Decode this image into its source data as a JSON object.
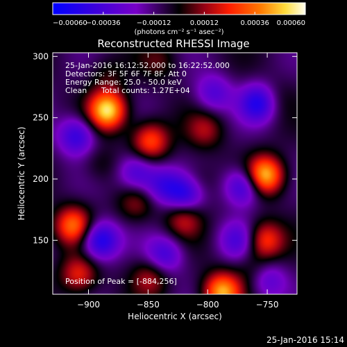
{
  "chart_data": {
    "type": "heatmap",
    "title": "Reconstructed RHESSI Image",
    "xlabel": "Heliocentric X (arcsec)",
    "ylabel": "Heliocentric Y (arcsec)",
    "xlim": [
      -930,
      -725
    ],
    "ylim": [
      106,
      303
    ],
    "x_ticks": [
      -900,
      -850,
      -800,
      -750
    ],
    "y_ticks": [
      150,
      200,
      250,
      300
    ],
    "x_tick_labels": [
      "-900",
      "-850",
      "-800",
      "-750"
    ],
    "y_tick_labels": [
      "150",
      "200",
      "250",
      "300"
    ],
    "colorbar": {
      "range": [
        -0.0006,
        0.0006
      ],
      "tick_values": [
        -0.0006,
        -0.00036,
        -0.00012,
        0.00012,
        0.00036,
        0.0006
      ],
      "tick_labels": [
        "-0.00060",
        "-0.00036",
        "-0.00012",
        "0.00012",
        "0.00036",
        "0.00060"
      ],
      "units_label": "(photons cm⁻² s⁻¹ asec⁻²)"
    },
    "annotations": {
      "time_range": "25-Jan-2016 16:12:52.000 to 16:22:52.000",
      "detectors": "Detectors: 3F 5F 6F 7F 8F, Att 0",
      "energy_range": "Energy Range: 25.0 - 50.0 keV",
      "clean_label": "Clean",
      "total_counts": "Total counts: 1.27E+04",
      "peak": "Position of Peak = [-884,256]"
    },
    "peaks": [
      {
        "x": -884,
        "y": 256,
        "value": 0.0006
      },
      {
        "x": -752,
        "y": 203,
        "value": 0.00057
      },
      {
        "x": -788,
        "y": 108,
        "value": 0.00052
      },
      {
        "x": -913,
        "y": 162,
        "value": 0.00042
      },
      {
        "x": -848,
        "y": 231,
        "value": 0.00038
      },
      {
        "x": -752,
        "y": 150,
        "value": 0.00035
      },
      {
        "x": -820,
        "y": 168,
        "value": 0.00025
      },
      {
        "x": -908,
        "y": 122,
        "value": 0.0003
      },
      {
        "x": -802,
        "y": 240,
        "value": 0.0002
      },
      {
        "x": -848,
        "y": 120,
        "value": 0.00022
      },
      {
        "x": -860,
        "y": 180,
        "value": 0.00018
      },
      {
        "x": -810,
        "y": 196,
        "value": 0.00016
      },
      {
        "x": -840,
        "y": 296,
        "value": 0.00012
      },
      {
        "x": -885,
        "y": 285,
        "value": 0.0001
      },
      {
        "x": -745,
        "y": 265,
        "value": 0.0001
      },
      {
        "x": -760,
        "y": 125,
        "value": 0.00012
      },
      {
        "x": -890,
        "y": 212,
        "value": 0.0001
      }
    ],
    "troughs": [
      {
        "x": -890,
        "y": 150,
        "value": -0.00045
      },
      {
        "x": -818,
        "y": 188,
        "value": -0.0004
      },
      {
        "x": -770,
        "y": 194,
        "value": -0.00038
      },
      {
        "x": -757,
        "y": 262,
        "value": -0.00042
      },
      {
        "x": -860,
        "y": 205,
        "value": -0.0003
      },
      {
        "x": -838,
        "y": 195,
        "value": -0.00028
      },
      {
        "x": -910,
        "y": 235,
        "value": -0.00035
      },
      {
        "x": -795,
        "y": 270,
        "value": -0.00025
      },
      {
        "x": -836,
        "y": 138,
        "value": -0.0003
      },
      {
        "x": -775,
        "y": 150,
        "value": -0.00025
      },
      {
        "x": -750,
        "y": 118,
        "value": -0.00025
      }
    ]
  },
  "footer": {
    "timestamp": "25-Jan-2016 15:14"
  }
}
